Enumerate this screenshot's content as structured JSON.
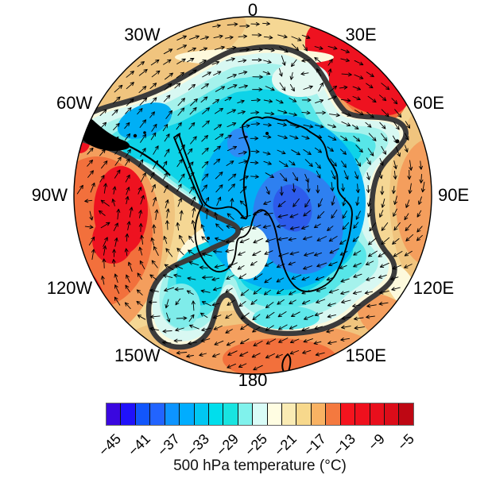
{
  "figure": {
    "caption": "500 hPa temperature (°C)"
  },
  "map": {
    "projection": "south polar stereographic",
    "longitude_labels": [
      {
        "label": "0",
        "angle": 0
      },
      {
        "label": "30E",
        "angle": 30
      },
      {
        "label": "60E",
        "angle": 60
      },
      {
        "label": "90E",
        "angle": 90
      },
      {
        "label": "120E",
        "angle": 120
      },
      {
        "label": "150E",
        "angle": 150
      },
      {
        "label": "180",
        "angle": 180
      },
      {
        "label": "150W",
        "angle": 210
      },
      {
        "label": "120W",
        "angle": 240
      },
      {
        "label": "90W",
        "angle": 270
      },
      {
        "label": "60W",
        "angle": 300
      },
      {
        "label": "30W",
        "angle": 330
      }
    ]
  },
  "colorbar": {
    "tick_labels": [
      "−45",
      "−41",
      "−37",
      "−33",
      "−29",
      "−25",
      "−21",
      "−17",
      "−13",
      "−9",
      "−5"
    ],
    "cell_colors": [
      "#3A07DF",
      "#2012FA",
      "#1256FC",
      "#2264FF",
      "#0D94FF",
      "#00ADFF",
      "#00C7F2",
      "#00DEEC",
      "#18E4E0",
      "#80F2EC",
      "#D9FCF7",
      "#FFFDE2",
      "#FAEBB4",
      "#F7D88C",
      "#F9B263",
      "#F4793F",
      "#F5141E",
      "#EF101D",
      "#E90F1C",
      "#DC0C19",
      "#BE0713"
    ]
  },
  "chart_data": {
    "type": "heatmap",
    "title": "",
    "variable": "500 hPa temperature",
    "units": "°C",
    "caption": "500 hPa temperature (°C)",
    "projection": "south polar stereographic map centered on Antarctica",
    "longitude_ticks": [
      "0",
      "30E",
      "60E",
      "90E",
      "120E",
      "150E",
      "180",
      "150W",
      "120W",
      "90W",
      "60W",
      "30W"
    ],
    "colorbar_tick_values": [
      -45,
      -41,
      -37,
      -33,
      -29,
      -25,
      -21,
      -17,
      -13,
      -9,
      -5
    ],
    "colorbar_colors": [
      "#3A07DF",
      "#2012FA",
      "#1256FC",
      "#2264FF",
      "#0D94FF",
      "#00ADFF",
      "#00C7F2",
      "#00DEEC",
      "#18E4E0",
      "#80F2EC",
      "#D9FCF7",
      "#FFFDE2",
      "#FAEBB4",
      "#F7D88C",
      "#F9B263",
      "#F4793F",
      "#F5141E",
      "#EF101D",
      "#E90F1C",
      "#DC0C19",
      "#BE0713"
    ],
    "overlays": [
      "500 hPa wind vectors (black arrows)",
      "coastlines of Antarctica, southern South America and New Zealand",
      "thick dark contour enclosing the cold polar air mass"
    ],
    "pattern_summary": "Warm ring (−5 to −21 °C, orange/red) around the 60S boundary with red maxima near 30E–50E, 90W–120W and the dateline; cold core (−29 to −45 °C, cyan/blue) over Antarctica, deepest blue over East Antarctica near 90E; warm tongue intruding from the Bellingshausen Sea toward the Antarctic Peninsula."
  }
}
